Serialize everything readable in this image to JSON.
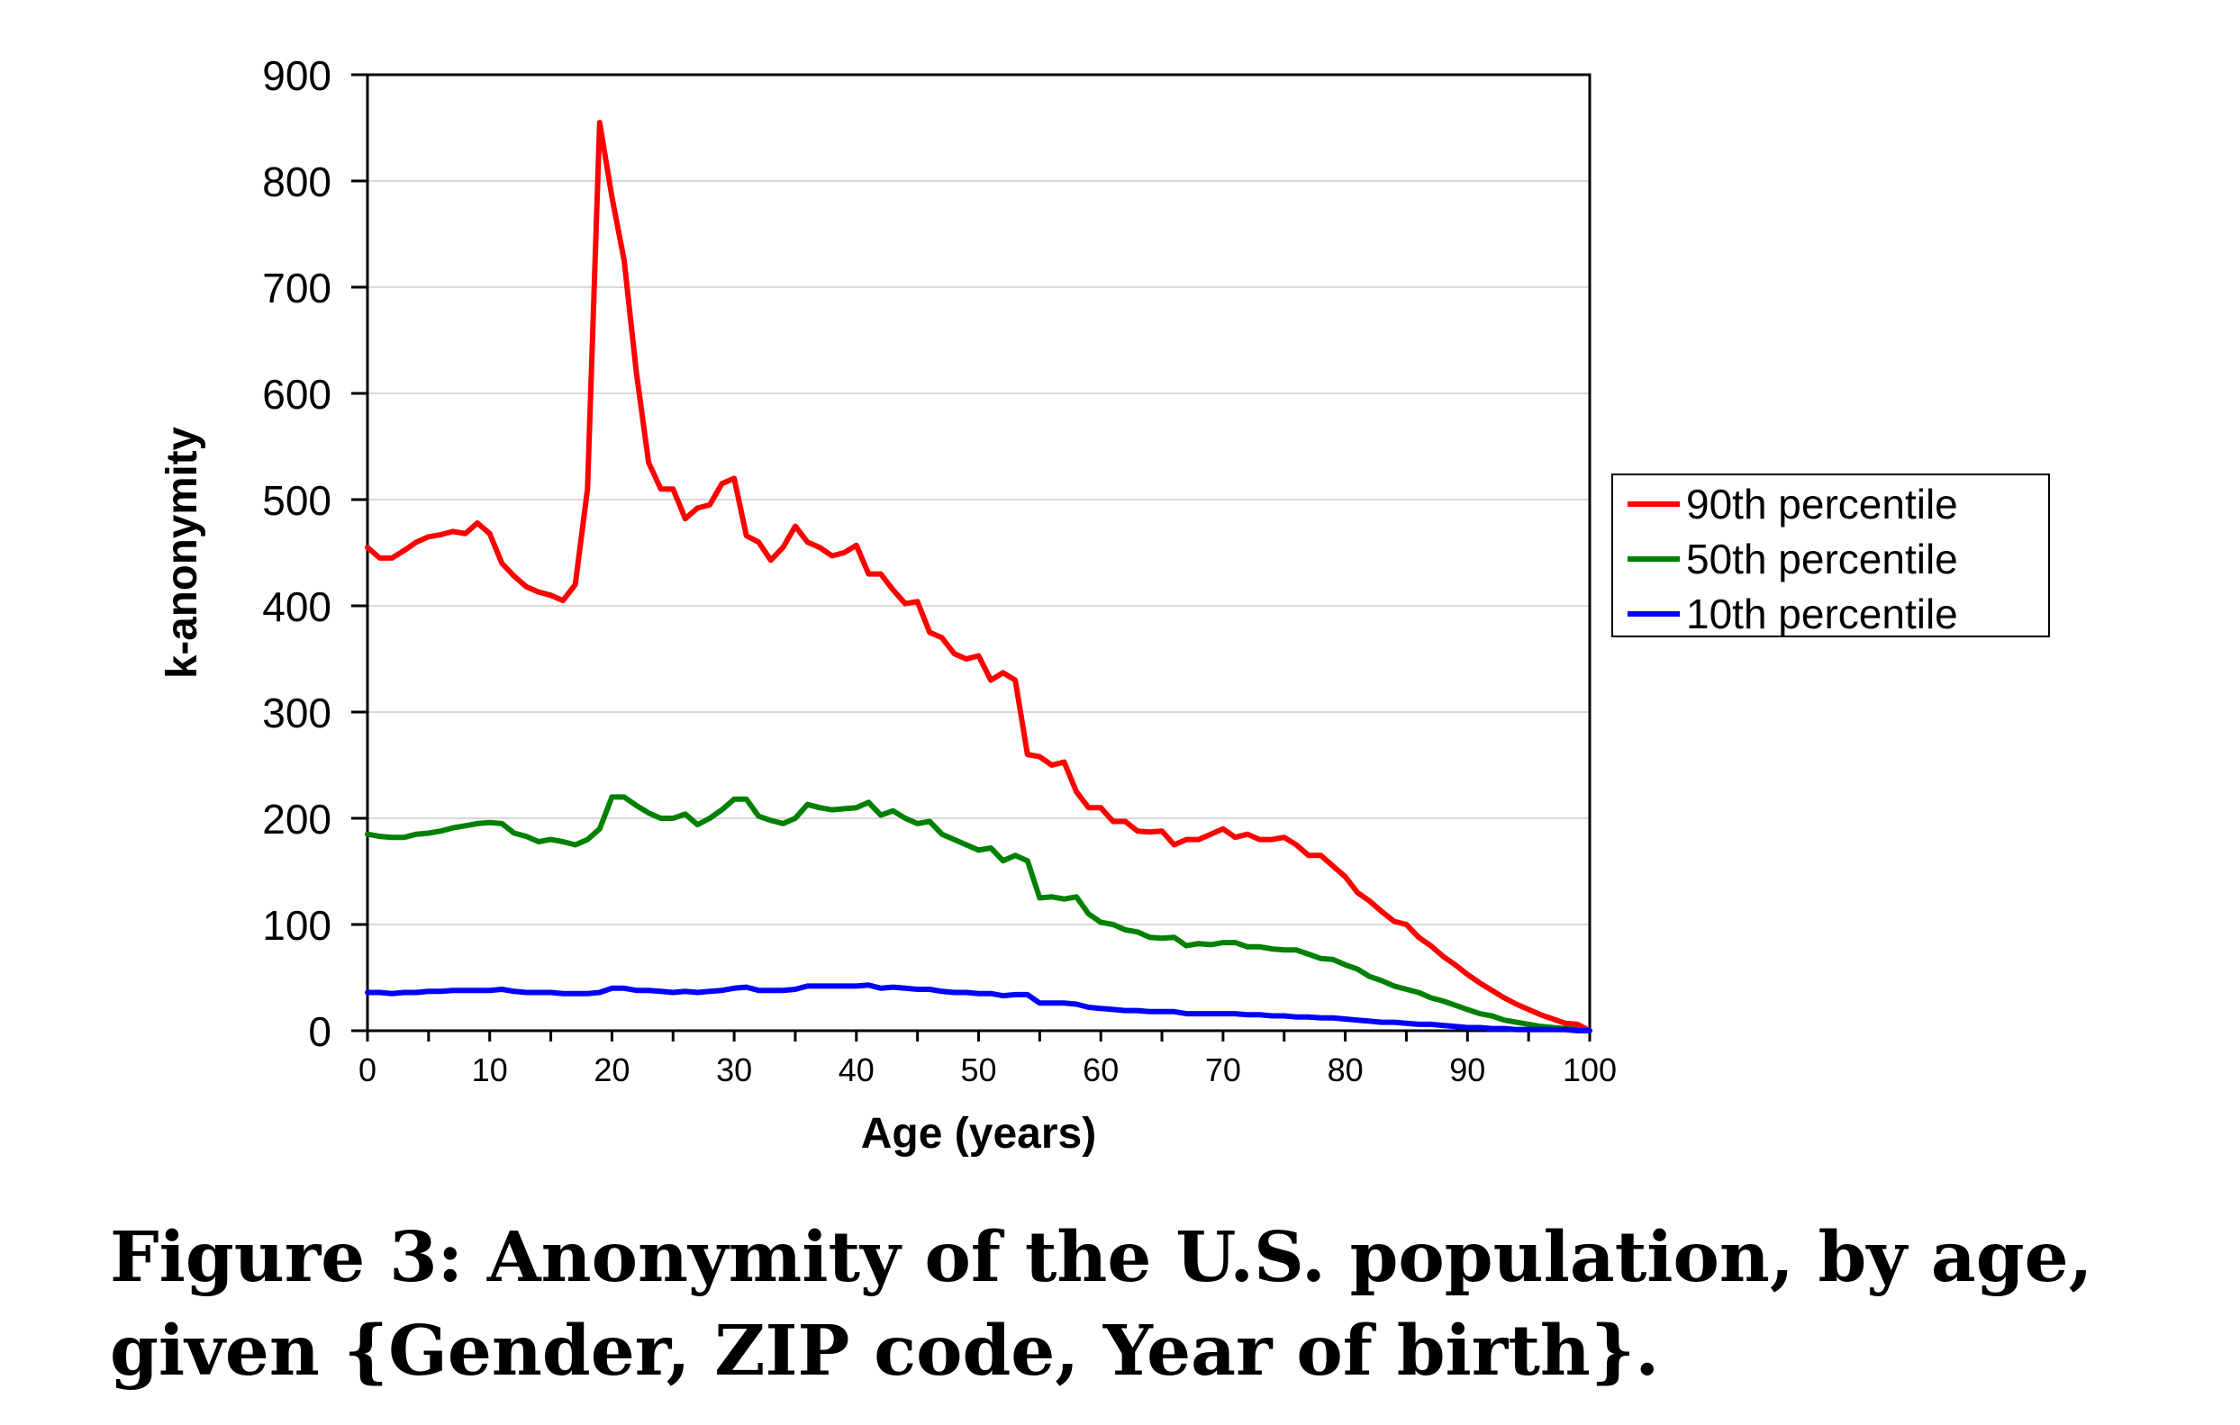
{
  "chart_data": {
    "type": "line",
    "xlabel": "Age (years)",
    "ylabel": "k-anonymity",
    "xlim": [
      0,
      100
    ],
    "ylim": [
      0,
      900
    ],
    "xticks": [
      0,
      10,
      20,
      30,
      40,
      50,
      60,
      70,
      80,
      90,
      100
    ],
    "yticks": [
      0,
      100,
      200,
      300,
      400,
      500,
      600,
      700,
      800,
      900
    ],
    "grid": "horizontal",
    "legend_position": "right",
    "series": [
      {
        "name": "90th percentile",
        "color": "#ff0000",
        "x": [
          0,
          1,
          2,
          3,
          4,
          5,
          6,
          7,
          8,
          9,
          10,
          11,
          12,
          13,
          14,
          15,
          16,
          17,
          18,
          19,
          20,
          21,
          22,
          23,
          24,
          25,
          26,
          27,
          28,
          29,
          30,
          31,
          32,
          33,
          34,
          35,
          36,
          37,
          38,
          39,
          40,
          41,
          42,
          43,
          44,
          45,
          46,
          47,
          48,
          49,
          50,
          51,
          52,
          53,
          54,
          55,
          56,
          57,
          58,
          59,
          60,
          61,
          62,
          63,
          64,
          65,
          66,
          67,
          68,
          69,
          70,
          71,
          72,
          73,
          74,
          75,
          76,
          77,
          78,
          79,
          80,
          81,
          82,
          83,
          84,
          85,
          86,
          87,
          88,
          89,
          90,
          91,
          92,
          93,
          94,
          95,
          96,
          97,
          98,
          99,
          100
        ],
        "y": [
          455,
          445,
          445,
          452,
          460,
          465,
          467,
          470,
          468,
          478,
          468,
          440,
          428,
          418,
          413,
          410,
          405,
          420,
          510,
          855,
          785,
          725,
          620,
          535,
          510,
          510,
          482,
          492,
          495,
          515,
          520,
          466,
          460,
          443,
          455,
          475,
          460,
          455,
          447,
          450,
          457,
          430,
          430,
          415,
          402,
          404,
          375,
          370,
          355,
          350,
          353,
          330,
          337,
          330,
          260,
          258,
          250,
          253,
          225,
          210,
          210,
          197,
          197,
          188,
          187,
          188,
          175,
          180,
          180,
          185,
          190,
          182,
          185,
          180,
          180,
          182,
          175,
          165,
          165,
          155,
          145,
          130,
          122,
          112,
          103,
          100,
          88,
          80,
          70,
          62,
          53,
          45,
          38,
          31,
          25,
          20,
          15,
          11,
          7,
          6,
          0
        ]
      },
      {
        "name": "50th percentile",
        "color": "#008000",
        "x": [
          0,
          1,
          2,
          3,
          4,
          5,
          6,
          7,
          8,
          9,
          10,
          11,
          12,
          13,
          14,
          15,
          16,
          17,
          18,
          19,
          20,
          21,
          22,
          23,
          24,
          25,
          26,
          27,
          28,
          29,
          30,
          31,
          32,
          33,
          34,
          35,
          36,
          37,
          38,
          39,
          40,
          41,
          42,
          43,
          44,
          45,
          46,
          47,
          48,
          49,
          50,
          51,
          52,
          53,
          54,
          55,
          56,
          57,
          58,
          59,
          60,
          61,
          62,
          63,
          64,
          65,
          66,
          67,
          68,
          69,
          70,
          71,
          72,
          73,
          74,
          75,
          76,
          77,
          78,
          79,
          80,
          81,
          82,
          83,
          84,
          85,
          86,
          87,
          88,
          89,
          90,
          91,
          92,
          93,
          94,
          95,
          96,
          97,
          98,
          99,
          100
        ],
        "y": [
          185,
          183,
          182,
          182,
          185,
          186,
          188,
          191,
          193,
          195,
          196,
          195,
          186,
          183,
          178,
          180,
          178,
          175,
          180,
          190,
          220,
          220,
          212,
          205,
          200,
          200,
          204,
          194,
          200,
          208,
          218,
          218,
          202,
          198,
          195,
          200,
          213,
          210,
          208,
          209,
          210,
          215,
          203,
          207,
          200,
          195,
          197,
          185,
          180,
          175,
          170,
          172,
          160,
          165,
          160,
          125,
          126,
          124,
          126,
          110,
          102,
          100,
          95,
          93,
          88,
          87,
          88,
          80,
          82,
          81,
          83,
          83,
          79,
          79,
          77,
          76,
          76,
          72,
          68,
          67,
          62,
          58,
          51,
          47,
          42,
          39,
          36,
          31,
          28,
          24,
          20,
          16,
          14,
          10,
          8,
          6,
          4,
          3,
          2,
          1,
          0
        ]
      },
      {
        "name": "10th percentile",
        "color": "#0000ff",
        "x": [
          0,
          1,
          2,
          3,
          4,
          5,
          6,
          7,
          8,
          9,
          10,
          11,
          12,
          13,
          14,
          15,
          16,
          17,
          18,
          19,
          20,
          21,
          22,
          23,
          24,
          25,
          26,
          27,
          28,
          29,
          30,
          31,
          32,
          33,
          34,
          35,
          36,
          37,
          38,
          39,
          40,
          41,
          42,
          43,
          44,
          45,
          46,
          47,
          48,
          49,
          50,
          51,
          52,
          53,
          54,
          55,
          56,
          57,
          58,
          59,
          60,
          61,
          62,
          63,
          64,
          65,
          66,
          67,
          68,
          69,
          70,
          71,
          72,
          73,
          74,
          75,
          76,
          77,
          78,
          79,
          80,
          81,
          82,
          83,
          84,
          85,
          86,
          87,
          88,
          89,
          90,
          91,
          92,
          93,
          94,
          95,
          96,
          97,
          98,
          99,
          100
        ],
        "y": [
          36,
          36,
          35,
          36,
          36,
          37,
          37,
          38,
          38,
          38,
          38,
          39,
          37,
          36,
          36,
          36,
          35,
          35,
          35,
          36,
          40,
          40,
          38,
          38,
          37,
          36,
          37,
          36,
          37,
          38,
          40,
          41,
          38,
          38,
          38,
          39,
          42,
          42,
          42,
          42,
          42,
          43,
          40,
          41,
          40,
          39,
          39,
          37,
          36,
          36,
          35,
          35,
          33,
          34,
          34,
          26,
          26,
          26,
          25,
          22,
          21,
          20,
          19,
          19,
          18,
          18,
          18,
          16,
          16,
          16,
          16,
          16,
          15,
          15,
          14,
          14,
          13,
          13,
          12,
          12,
          11,
          10,
          9,
          8,
          8,
          7,
          6,
          6,
          5,
          4,
          3,
          3,
          2,
          2,
          1,
          1,
          1,
          1,
          1,
          0,
          0
        ]
      }
    ]
  },
  "caption": {
    "line1": "Figure 3: Anonymity of the U.S. population, by age,",
    "line2": "given {Gender, ZIP code, Year of birth}."
  }
}
